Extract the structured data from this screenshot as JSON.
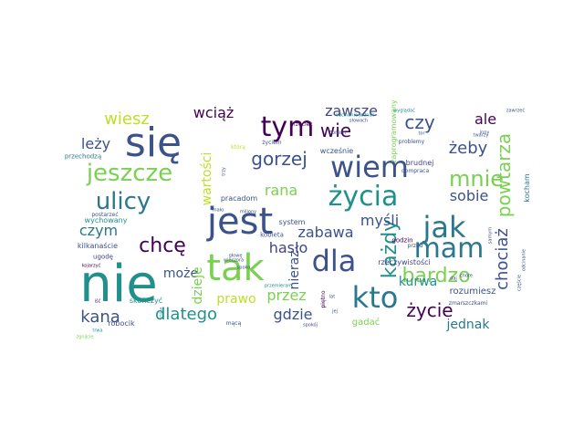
{
  "words": [
    {
      "text": "nie",
      "color": "#21908c"
    },
    {
      "text": "się",
      "color": "#3b528b"
    },
    {
      "text": "jest",
      "color": "#3b528b"
    },
    {
      "text": "tak",
      "color": "#7ad151"
    },
    {
      "text": "wiem",
      "color": "#3b528b"
    },
    {
      "text": "kto",
      "color": "#2a788e"
    },
    {
      "text": "dla",
      "color": "#3b528b"
    },
    {
      "text": "jak",
      "color": "#2a788e"
    },
    {
      "text": "mam",
      "color": "#2a788e"
    },
    {
      "text": "tym",
      "color": "#440154"
    },
    {
      "text": "życia",
      "color": "#21908c"
    },
    {
      "text": "ulicy",
      "color": "#2a788e"
    },
    {
      "text": "jeszcze",
      "color": "#7ad151"
    },
    {
      "text": "mnie",
      "color": "#7ad151"
    },
    {
      "text": "bardzo",
      "color": "#7ad151"
    },
    {
      "text": "gorzej",
      "color": "#3b528b"
    },
    {
      "text": "każdy",
      "color": "#21908c"
    },
    {
      "text": "chcę",
      "color": "#440154"
    },
    {
      "text": "czy",
      "color": "#3b528b"
    },
    {
      "text": "wie",
      "color": "#440154"
    },
    {
      "text": "życie",
      "color": "#440154"
    },
    {
      "text": "powtarza",
      "color": "#7ad151"
    },
    {
      "text": "chociaż",
      "color": "#3b528b"
    },
    {
      "text": "żeby",
      "color": "#3b528b"
    },
    {
      "text": "wiesz",
      "color": "#bddf26"
    },
    {
      "text": "zawsze",
      "color": "#414487"
    },
    {
      "text": "myśli",
      "color": "#3b528b"
    },
    {
      "text": "dlatego",
      "color": "#21908c"
    },
    {
      "text": "kana",
      "color": "#3b528b"
    },
    {
      "text": "przez",
      "color": "#7ad151"
    },
    {
      "text": "gdzie",
      "color": "#3b528b"
    },
    {
      "text": "rana",
      "color": "#7ad151"
    },
    {
      "text": "czym",
      "color": "#2a788e"
    },
    {
      "text": "hasło",
      "color": "#414487"
    },
    {
      "text": "zabawa",
      "color": "#3b528b"
    },
    {
      "text": "sobie",
      "color": "#3b528b"
    },
    {
      "text": "ale",
      "color": "#440154"
    },
    {
      "text": "leży",
      "color": "#3b528b"
    },
    {
      "text": "wciąż",
      "color": "#440154"
    },
    {
      "text": "prawo",
      "color": "#bddf26"
    },
    {
      "text": "nieraz",
      "color": "#3b528b"
    },
    {
      "text": "może",
      "color": "#3b528b"
    },
    {
      "text": "kurwa",
      "color": "#21908c"
    },
    {
      "text": "jednak",
      "color": "#2a788e"
    },
    {
      "text": "wartości",
      "color": "#bddf26"
    },
    {
      "text": "dzieje",
      "color": "#7ad151"
    },
    {
      "text": "gadać",
      "color": "#7ad151"
    },
    {
      "text": "rozumiesz",
      "color": "#3b528b"
    },
    {
      "text": "rzeczywistości",
      "color": "#414487"
    },
    {
      "text": "kocham",
      "color": "#2a788e"
    },
    {
      "text": "zaprogramowany",
      "color": "#7ad151"
    },
    {
      "text": "brudnej",
      "color": "#414487"
    },
    {
      "text": "system",
      "color": "#3b528b"
    },
    {
      "text": "wychowany",
      "color": "#21908c"
    },
    {
      "text": "kilkanaście",
      "color": "#3b528b"
    },
    {
      "text": "skończyć",
      "color": "#21908c"
    },
    {
      "text": "robocik",
      "color": "#3b528b"
    },
    {
      "text": "wcześnie",
      "color": "#3b528b"
    },
    {
      "text": "pracadom",
      "color": "#3b528b"
    },
    {
      "text": "godzin",
      "color": "#440154"
    },
    {
      "text": "piętno",
      "color": "#440154"
    },
    {
      "text": "kobieta",
      "color": "#3b528b"
    },
    {
      "text": "przed",
      "color": "#3b528b"
    },
    {
      "text": "ugodę",
      "color": "#414487"
    },
    {
      "text": "postarzeć",
      "color": "#3b528b"
    },
    {
      "text": "przechodzą",
      "color": "#2a788e"
    },
    {
      "text": "którą",
      "color": "#bddf26"
    },
    {
      "text": "dompraca",
      "color": "#3b528b"
    },
    {
      "text": "problemy",
      "color": "#3b528b"
    },
    {
      "text": "torem",
      "color": "#3b528b"
    },
    {
      "text": "życiem",
      "color": "#3b528b"
    },
    {
      "text": "przecież",
      "color": "#440154"
    },
    {
      "text": "słowach",
      "color": "#3b528b"
    },
    {
      "text": "wyglądać",
      "color": "#21908c"
    },
    {
      "text": "tor",
      "color": "#3b528b"
    },
    {
      "text": "inny",
      "color": "#3b528b"
    },
    {
      "text": "twarzy",
      "color": "#3b528b"
    },
    {
      "text": "zawrzeć",
      "color": "#3b528b"
    },
    {
      "text": "daj",
      "color": "#414487"
    },
    {
      "text": "chore",
      "color": "#3b528b"
    },
    {
      "text": "samym",
      "color": "#3b528b"
    },
    {
      "text": "zmarszczkami",
      "color": "#3b528b"
    },
    {
      "text": "lat",
      "color": "#3b528b"
    },
    {
      "text": "jej",
      "color": "#3b528b"
    },
    {
      "text": "mącą",
      "color": "#3b528b"
    },
    {
      "text": "spokój",
      "color": "#3b528b"
    },
    {
      "text": "przemieram",
      "color": "#21908c"
    },
    {
      "text": "wieczora",
      "color": "#3b528b"
    },
    {
      "text": "głowę",
      "color": "#3b528b"
    },
    {
      "text": "miliony",
      "color": "#3b528b"
    },
    {
      "text": "kojarzyć",
      "color": "#440154"
    },
    {
      "text": "które",
      "color": "#21908c"
    },
    {
      "text": "trwa",
      "color": "#21908c"
    },
    {
      "text": "iść",
      "color": "#440154"
    },
    {
      "text": "odcinanie",
      "color": "#3b528b"
    },
    {
      "text": "zgnijcie",
      "color": "#7ad151"
    },
    {
      "text": "mało",
      "color": "#3b528b"
    },
    {
      "text": "spoko",
      "color": "#3b528b"
    },
    {
      "text": "trzy",
      "color": "#3b528b"
    },
    {
      "text": "częście",
      "color": "#3b528b"
    },
    {
      "text": "odcinanie jednak",
      "color": "#21908c"
    },
    {
      "text": "wyglądać",
      "color": "#3b528b"
    }
  ]
}
